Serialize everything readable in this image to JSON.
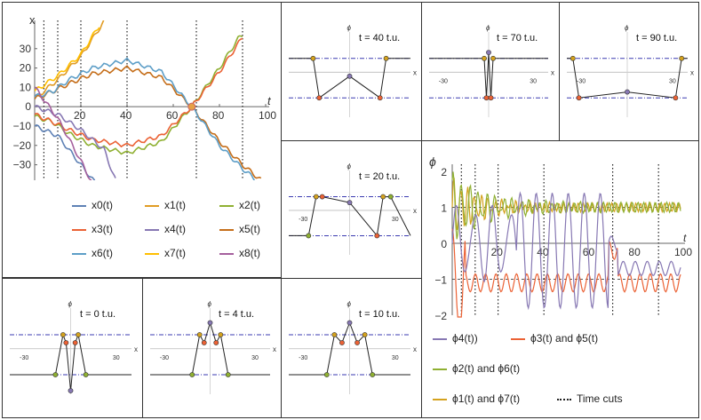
{
  "colors": {
    "x0": "#5e81b5",
    "x1": "#e19c24",
    "x2": "#8fb032",
    "x3": "#eb6235",
    "x4": "#8778b3",
    "x5": "#c56e1a",
    "x6": "#5d9ec7",
    "x7": "#ffbf00",
    "x8": "#a5609d",
    "phi4": "#8778b3",
    "phi35": "#eb6235",
    "phi26": "#8fb032",
    "phi17": "#d4a21e",
    "dashdot": "#3a3ab0",
    "cut": "#222222"
  },
  "chart_data": [
    {
      "id": "trajectories",
      "type": "line",
      "ylabel": "x",
      "xlabel": "t",
      "xlim": [
        0,
        100
      ],
      "ylim": [
        -38,
        40
      ],
      "x_ticks": [
        "20",
        "40",
        "60",
        "80",
        "100"
      ],
      "y_ticks": [
        "30",
        "20",
        "10",
        "0",
        "−10",
        "−20",
        "−30"
      ],
      "time_cuts": [
        4,
        10,
        20,
        40,
        70,
        90
      ],
      "series": [
        {
          "name": "x0(t)",
          "key": "x0",
          "values": [
            [
              0,
              -10
            ],
            [
              10,
              -15
            ],
            [
              20,
              -30
            ],
            [
              30,
              -45
            ]
          ]
        },
        {
          "name": "x1(t)",
          "key": "x1",
          "values": [
            [
              0,
              4
            ],
            [
              10,
              14
            ],
            [
              20,
              26
            ],
            [
              30,
              44
            ]
          ]
        },
        {
          "name": "x2(t)",
          "key": "x2",
          "values": [
            [
              0,
              -5
            ],
            [
              8,
              -8
            ],
            [
              15,
              -14
            ],
            [
              25,
              -20
            ],
            [
              40,
              -24
            ],
            [
              55,
              -18
            ],
            [
              68,
              0
            ],
            [
              80,
              20
            ],
            [
              88,
              35
            ],
            [
              90,
              37
            ]
          ]
        },
        {
          "name": "x3(t)",
          "key": "x3",
          "values": [
            [
              0,
              -4
            ],
            [
              8,
              -8
            ],
            [
              15,
              -12
            ],
            [
              25,
              -17
            ],
            [
              40,
              -20
            ],
            [
              55,
              -15
            ],
            [
              68,
              0
            ],
            [
              80,
              18
            ],
            [
              90,
              36
            ]
          ]
        },
        {
          "name": "x4(t)",
          "key": "x4",
          "values": [
            [
              0,
              0
            ],
            [
              10,
              -4
            ],
            [
              20,
              -12
            ],
            [
              30,
              -22
            ],
            [
              35,
              -38
            ]
          ]
        },
        {
          "name": "x5(t)",
          "key": "x5",
          "values": [
            [
              0,
              4
            ],
            [
              8,
              8
            ],
            [
              15,
              12
            ],
            [
              25,
              17
            ],
            [
              40,
              20
            ],
            [
              55,
              15
            ],
            [
              68,
              0
            ],
            [
              80,
              -18
            ],
            [
              90,
              -30
            ],
            [
              98,
              -38
            ]
          ]
        },
        {
          "name": "x6(t)",
          "key": "x6",
          "values": [
            [
              0,
              5
            ],
            [
              8,
              8
            ],
            [
              15,
              14
            ],
            [
              25,
              20
            ],
            [
              40,
              24
            ],
            [
              55,
              18
            ],
            [
              68,
              0
            ],
            [
              80,
              -20
            ],
            [
              90,
              -32
            ],
            [
              96,
              -38
            ]
          ]
        },
        {
          "name": "x7(t)",
          "key": "x7",
          "values": [
            [
              0,
              8
            ],
            [
              10,
              16
            ],
            [
              20,
              27
            ],
            [
              28,
              42
            ]
          ]
        },
        {
          "name": "x8(t)",
          "key": "x8",
          "values": [
            [
              0,
              10
            ],
            [
              10,
              -6
            ],
            [
              20,
              -28
            ],
            [
              26,
              -42
            ]
          ]
        }
      ],
      "legend": [
        "x0(t)",
        "x1(t)",
        "x2(t)",
        "x3(t)",
        "x4(t)",
        "x5(t)",
        "x6(t)",
        "x7(t)",
        "x8(t)"
      ]
    },
    {
      "id": "phi-time",
      "type": "line",
      "ylabel": "ϕ",
      "xlabel": "t",
      "xlim": [
        0,
        100
      ],
      "ylim": [
        -2,
        2
      ],
      "x_ticks": [
        "20",
        "40",
        "60",
        "80",
        "100"
      ],
      "y_ticks": [
        "2",
        "1",
        "0",
        "−1",
        "−2"
      ],
      "time_cuts": [
        4,
        10,
        20,
        40,
        70,
        90
      ],
      "reference_levels": [
        1,
        -1
      ],
      "legend": [
        "ϕ4(t))",
        "ϕ3(t) and ϕ5(t)",
        "ϕ2(t) and ϕ6(t)",
        "ϕ1(t) and ϕ7(t)",
        "Time cuts"
      ]
    },
    {
      "id": "snap-t0",
      "type": "scatter",
      "title": "t = 0 t.u.",
      "xlabel": "x",
      "ylabel": "ϕ",
      "x_ticks": [
        "-30",
        "30"
      ],
      "x": [
        -40,
        -10,
        -5,
        -3,
        0,
        3,
        5,
        10,
        40
      ],
      "y": [
        -1,
        -1,
        1.0,
        0.6,
        -1.8,
        0.6,
        1.0,
        -1,
        -1
      ]
    },
    {
      "id": "snap-t4",
      "type": "scatter",
      "title": "t = 4 t.u.",
      "xlabel": "x",
      "ylabel": "ϕ",
      "x_ticks": [
        "-30",
        "30"
      ],
      "x": [
        -40,
        -12,
        -7,
        -4,
        0,
        4,
        7,
        12,
        40
      ],
      "y": [
        -1,
        -1,
        1,
        0.6,
        1.6,
        0.6,
        1,
        -1,
        -1
      ]
    },
    {
      "id": "snap-t10",
      "type": "scatter",
      "title": "t = 10 t.u.",
      "xlabel": "x",
      "ylabel": "ϕ",
      "x_ticks": [
        "-30",
        "30"
      ],
      "x": [
        -40,
        -15,
        -10,
        -5,
        0,
        5,
        10,
        15,
        40
      ],
      "y": [
        -1,
        -1,
        1,
        0.6,
        1.6,
        0.6,
        1,
        -1,
        -1
      ]
    },
    {
      "id": "snap-t20",
      "type": "scatter",
      "title": "t = 20 t.u.",
      "xlabel": "x",
      "ylabel": "ϕ",
      "x_ticks": [
        "-30",
        "30"
      ],
      "x": [
        -40,
        -27,
        -22,
        -18,
        0,
        18,
        22,
        27,
        40
      ],
      "y": [
        -1,
        -1,
        1,
        1,
        0.7,
        -1,
        1,
        1,
        -1
      ]
    },
    {
      "id": "snap-t40",
      "type": "scatter",
      "title": "t = 40 t.u.",
      "xlabel": "x",
      "ylabel": "ϕ",
      "x_ticks": [],
      "x": [
        -40,
        -24,
        -20,
        0,
        20,
        24,
        40
      ],
      "y": [
        1,
        1,
        -1,
        0.1,
        -1,
        1,
        1
      ]
    },
    {
      "id": "snap-t70",
      "type": "scatter",
      "title": "t = 70 t.u.",
      "xlabel": "x",
      "ylabel": "ϕ",
      "x_ticks": [
        "-30",
        "30"
      ],
      "x": [
        -40,
        -3,
        -1.5,
        0,
        1.5,
        3,
        40
      ],
      "y": [
        1,
        1,
        -1,
        1.3,
        -1,
        1,
        1
      ]
    },
    {
      "id": "snap-t90",
      "type": "scatter",
      "title": "t = 90 t.u.",
      "xlabel": "x",
      "ylabel": "ϕ",
      "x_ticks": [
        "-30",
        "30"
      ],
      "x": [
        -40,
        -36,
        -32,
        0,
        32,
        36,
        40
      ],
      "y": [
        1,
        1,
        -1,
        -0.7,
        -1,
        1,
        1
      ]
    }
  ]
}
